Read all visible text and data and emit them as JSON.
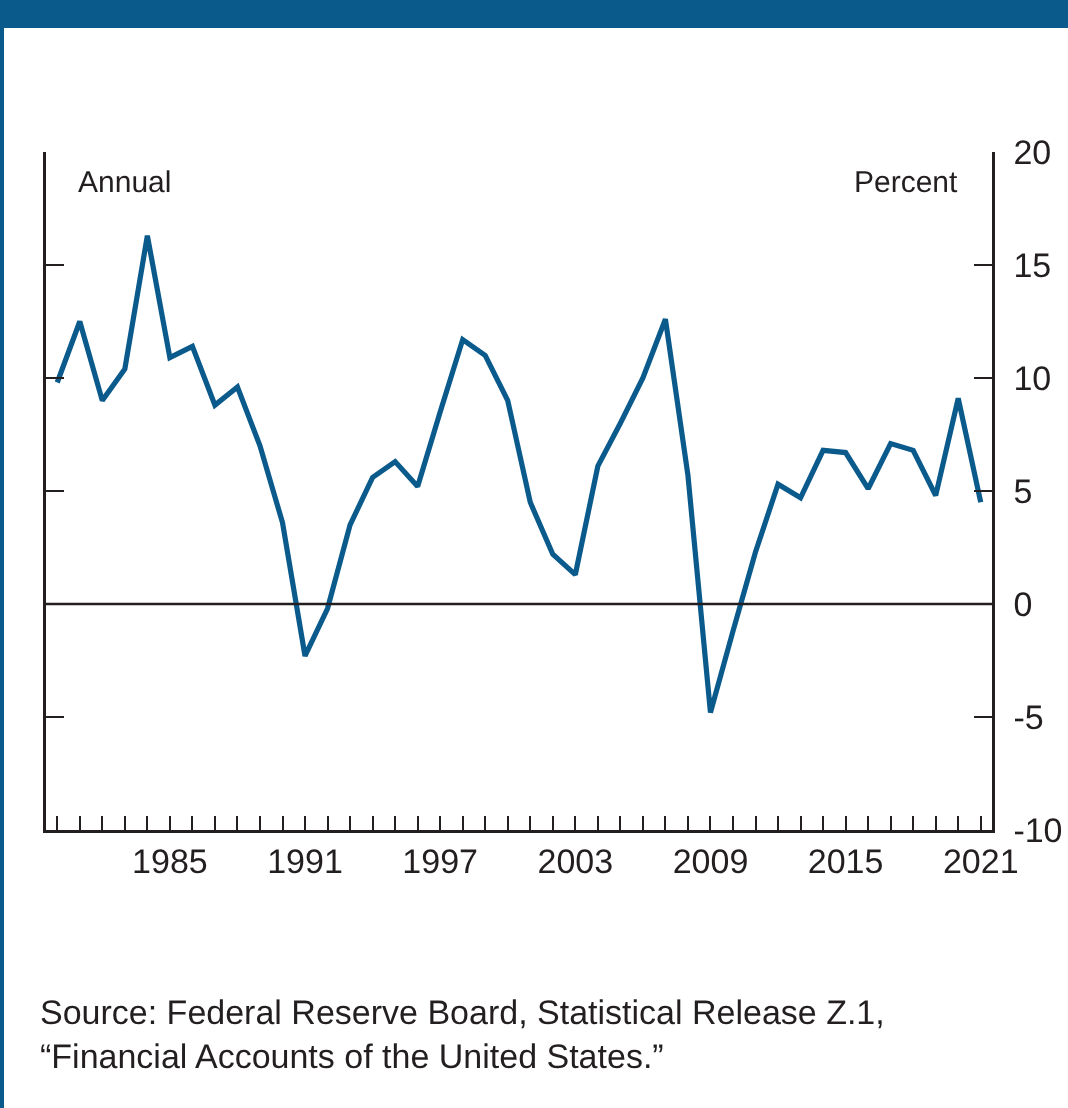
{
  "chart_data": {
    "type": "line",
    "x": [
      1980,
      1981,
      1982,
      1983,
      1984,
      1985,
      1986,
      1987,
      1988,
      1989,
      1990,
      1991,
      1992,
      1993,
      1994,
      1995,
      1996,
      1997,
      1998,
      1999,
      2000,
      2001,
      2002,
      2003,
      2004,
      2005,
      2006,
      2007,
      2008,
      2009,
      2010,
      2011,
      2012,
      2013,
      2014,
      2015,
      2016,
      2017,
      2018,
      2019,
      2020,
      2021
    ],
    "series": [
      {
        "color": "#0b5a8c",
        "values": [
          9.8,
          12.5,
          9.0,
          10.4,
          16.3,
          10.9,
          11.4,
          8.8,
          9.6,
          7.0,
          3.6,
          -2.3,
          -0.2,
          3.5,
          5.6,
          6.3,
          5.2,
          8.5,
          11.7,
          11.0,
          9.0,
          4.5,
          2.2,
          1.3,
          6.1,
          8.0,
          10.0,
          12.6,
          5.7,
          -4.8,
          -1.2,
          2.3,
          5.3,
          4.7,
          6.8,
          6.7,
          5.1,
          7.1,
          6.8,
          4.8,
          9.1,
          4.5
        ]
      }
    ],
    "xlim": [
      1979.5,
      2021.5
    ],
    "xticks": [
      {
        "value": 1980,
        "label": null
      },
      {
        "value": 1981,
        "label": null
      },
      {
        "value": 1982,
        "label": null
      },
      {
        "value": 1983,
        "label": null
      },
      {
        "value": 1984,
        "label": null
      },
      1985,
      {
        "value": 1986,
        "label": null
      },
      {
        "value": 1987,
        "label": null
      },
      {
        "value": 1988,
        "label": null
      },
      {
        "value": 1989,
        "label": null
      },
      {
        "value": 1990,
        "label": null
      },
      1991,
      {
        "value": 1992,
        "label": null
      },
      {
        "value": 1993,
        "label": null
      },
      {
        "value": 1994,
        "label": null
      },
      {
        "value": 1995,
        "label": null
      },
      {
        "value": 1996,
        "label": null
      },
      1997,
      {
        "value": 1998,
        "label": null
      },
      {
        "value": 1999,
        "label": null
      },
      {
        "value": 2000,
        "label": null
      },
      {
        "value": 2001,
        "label": null
      },
      {
        "value": 2002,
        "label": null
      },
      2003,
      {
        "value": 2004,
        "label": null
      },
      {
        "value": 2005,
        "label": null
      },
      {
        "value": 2006,
        "label": null
      },
      {
        "value": 2007,
        "label": null
      },
      {
        "value": 2008,
        "label": null
      },
      2009,
      {
        "value": 2010,
        "label": null
      },
      {
        "value": 2011,
        "label": null
      },
      {
        "value": 2012,
        "label": null
      },
      {
        "value": 2013,
        "label": null
      },
      {
        "value": 2014,
        "label": null
      },
      2015,
      {
        "value": 2016,
        "label": null
      },
      {
        "value": 2017,
        "label": null
      },
      {
        "value": 2018,
        "label": null
      },
      {
        "value": 2019,
        "label": null
      },
      {
        "value": 2020,
        "label": null
      },
      2021
    ],
    "ylim": [
      -10,
      20
    ],
    "yticks": [
      -10,
      -5,
      0,
      5,
      10,
      15,
      20
    ],
    "ref_lines": [
      {
        "axis": "y",
        "value": 0,
        "color": "#231f20"
      }
    ],
    "annotations": [
      "Annual",
      "Percent",
      "Source: Federal Reserve Board, Statistical Release Z.1, “Financial Accounts of the United States.”"
    ],
    "grid": false,
    "marker": "none",
    "line_style": "solid"
  }
}
